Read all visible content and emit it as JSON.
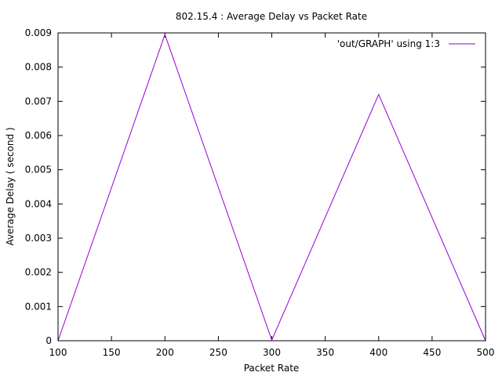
{
  "chart_data": {
    "type": "line",
    "title": "802.15.4 : Average Delay vs Packet Rate",
    "xlabel": "Packet Rate",
    "ylabel": "Average Delay ( second )",
    "xlim": [
      100,
      500
    ],
    "ylim": [
      0,
      0.009
    ],
    "xticks": [
      "100",
      "150",
      "200",
      "250",
      "300",
      "350",
      "400",
      "450",
      "500"
    ],
    "yticks": [
      "0",
      "0.001",
      "0.002",
      "0.003",
      "0.004",
      "0.005",
      "0.006",
      "0.007",
      "0.008",
      "0.009"
    ],
    "grid": false,
    "legend_position": "top-right",
    "series": [
      {
        "name": "'out/GRAPH' using 1:3",
        "color": "#9400d3",
        "x": [
          100,
          200,
          300,
          400,
          500
        ],
        "y": [
          0.0,
          0.00895,
          2e-05,
          0.0072,
          0.0
        ]
      }
    ]
  }
}
